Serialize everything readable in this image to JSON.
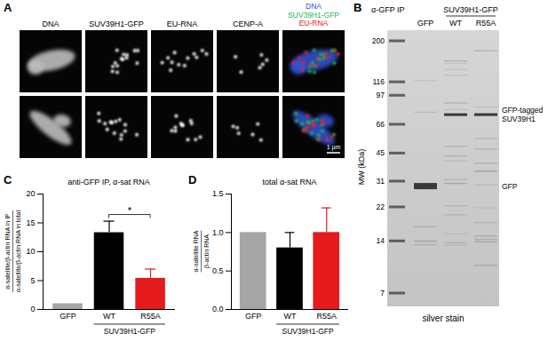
{
  "figure": {
    "panel_labels": [
      "A",
      "B",
      "C",
      "D"
    ],
    "A": {
      "columns": [
        "DNA",
        "SUV39H1-GFP",
        "EU-RNA",
        "CENP-A"
      ],
      "merge_labels": [
        {
          "text": "DNA",
          "color": "#3355dd"
        },
        {
          "text": "SUV39H1-GFP",
          "color": "#22bb44"
        },
        {
          "text": "EU-RNA",
          "color": "#ee2222"
        }
      ],
      "scale_bar": "1 µm"
    },
    "B": {
      "title": "α-GFP IP",
      "group": "SUV39H1-GFP",
      "lanes": [
        "GFP",
        "WT",
        "R55A"
      ],
      "axis_label": "MW (kDa)",
      "mw_ticks": [
        200,
        116,
        97,
        66,
        45,
        31,
        22,
        14,
        7
      ],
      "bands": [
        {
          "text_lines": [
            "GFP-tagged",
            "SUV39H1"
          ],
          "kda": 75,
          "lanes": [
            "WT",
            "R55A"
          ]
        },
        {
          "text_lines": [
            "GFP"
          ],
          "kda": 29,
          "lanes": [
            "GFP"
          ]
        }
      ],
      "caption": "silver stain"
    }
  },
  "chart_data": [
    {
      "type": "bar",
      "title": "anti-GFP IP, α-sat RNA",
      "ylabel": [
        "α-satellite/β-actin RNA in IP",
        "α-satellite/β-actin RNA in total"
      ],
      "categories": [
        "GFP",
        "WT",
        "R55A"
      ],
      "values": [
        1,
        13.3,
        5.4
      ],
      "errors": [
        null,
        2.0,
        1.6
      ],
      "colors": [
        "#a6a6a6",
        "#000000",
        "#e41a1c"
      ],
      "group": {
        "label": "SUV39H1-GFP",
        "categories": [
          "WT",
          "R55A"
        ]
      },
      "significance": {
        "from": "WT",
        "to": "R55A",
        "label": "*"
      },
      "ylim": [
        0,
        20
      ],
      "yticks": [
        0,
        5,
        10,
        15,
        20
      ]
    },
    {
      "type": "bar",
      "title": "total α-sat RNA",
      "ylabel": [
        "α-satellite RNA",
        "β-actin RNA"
      ],
      "categories": [
        "GFP",
        "WT",
        "R55A"
      ],
      "values": [
        1,
        0.8,
        1.0
      ],
      "errors": [
        null,
        0.2,
        0.32
      ],
      "colors": [
        "#a6a6a6",
        "#000000",
        "#e41a1c"
      ],
      "group": {
        "label": "SUV39H1-GFP",
        "categories": [
          "WT",
          "R55A"
        ]
      },
      "ylim": [
        0,
        1.5
      ],
      "yticks": [
        {
          "value": 0,
          "label": "0.0"
        },
        0.5,
        {
          "value": 1,
          "label": "1.0"
        },
        1.5
      ]
    }
  ]
}
